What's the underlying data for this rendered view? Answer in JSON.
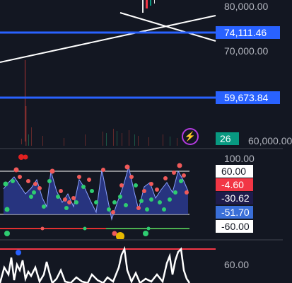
{
  "main_pane": {
    "price_labels": [
      "80,000.00",
      "70,000.00",
      "60,000.00"
    ],
    "horizontal_levels": [
      {
        "label": "74,111.46",
        "color": "#2962ff"
      },
      {
        "label": "59,673.84",
        "color": "#2962ff"
      }
    ],
    "indicator_tag": "26",
    "indicator_tag_color": "#089981",
    "alert_icon": "lightning-bolt-icon"
  },
  "oscillator_pane": {
    "scale_label": "100.00",
    "tags": [
      {
        "label": "60.00",
        "style": "white"
      },
      {
        "label": "-4.60",
        "style": "red"
      },
      {
        "label": "-30.62",
        "style": "navy"
      },
      {
        "label": "-51.70",
        "style": "blue"
      },
      {
        "label": "-60.00",
        "style": "white"
      }
    ]
  },
  "volume_pane": {
    "scale_label": "60.00"
  },
  "colors": {
    "background": "#131722",
    "level_line": "#2962ff",
    "area_fill": "#2b3a8f",
    "dot_red": "#f05a5a",
    "dot_green": "#2ecc71",
    "threshold_red": "#f23645",
    "threshold_green": "#4caf50",
    "highlight": "#e6b800"
  }
}
